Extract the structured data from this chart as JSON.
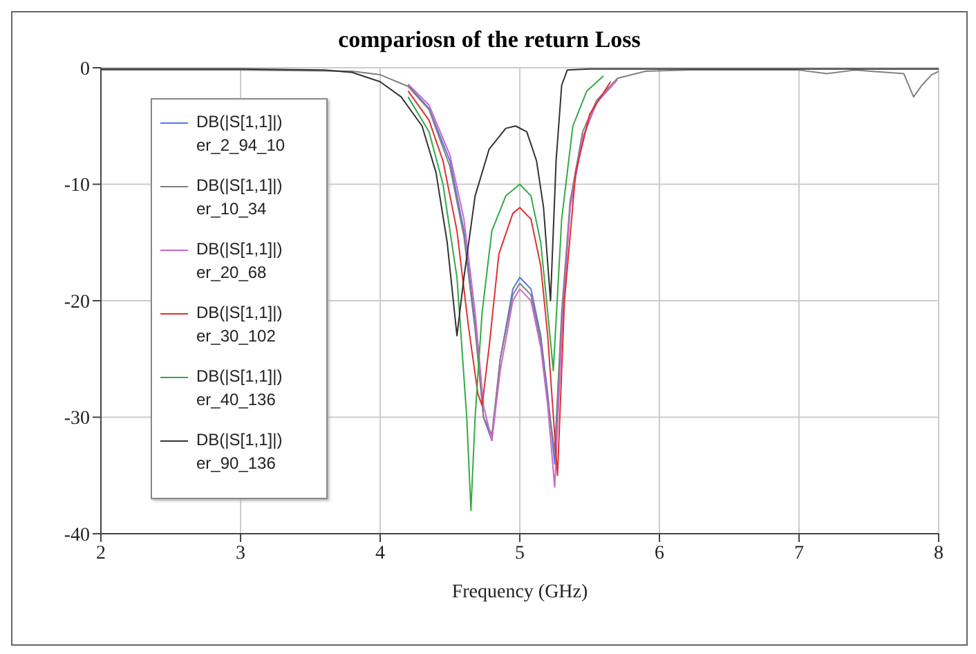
{
  "chart_data": {
    "type": "line",
    "title": "compariosn of the return Loss",
    "xlabel": "Frequency (GHz)",
    "xlim": [
      2,
      8
    ],
    "xticks": [
      2,
      3,
      4,
      5,
      6,
      7,
      8
    ],
    "ylim": [
      -40,
      0
    ],
    "yticks": [
      -40,
      -30,
      -20,
      -10,
      0
    ],
    "grid": true,
    "legend": "top left",
    "marker": "none",
    "line_style": "solid",
    "series": [
      {
        "name": "DB(|S[1,1]|) er_2_94_10",
        "color": "#5577dd",
        "x": [
          4.2,
          4.35,
          4.5,
          4.6,
          4.68,
          4.74,
          4.8,
          4.86,
          4.95,
          5.0,
          5.08,
          5.15,
          5.2,
          5.25,
          5.3,
          5.36,
          5.45,
          5.55,
          5.7
        ],
        "values": [
          -1.5,
          -3.5,
          -8,
          -14,
          -22,
          -30,
          -32,
          -25,
          -19,
          -18,
          -19,
          -23,
          -28,
          -34,
          -22,
          -12,
          -6,
          -3,
          -1
        ]
      },
      {
        "name": "DB(|S[1,1]|) er_10_34",
        "color": "#808080",
        "x": [
          2,
          3,
          3.8,
          4.0,
          4.2,
          4.35,
          4.5,
          4.6,
          4.68,
          4.74,
          4.8,
          4.86,
          4.95,
          5.0,
          5.08,
          5.15,
          5.2,
          5.25,
          5.3,
          5.36,
          5.45,
          5.55,
          5.7,
          5.9,
          6.2,
          7,
          7.2,
          7.4,
          7.75,
          7.82,
          7.88,
          7.95,
          8
        ],
        "values": [
          -0.2,
          -0.2,
          -0.3,
          -0.6,
          -1.6,
          -3.6,
          -8.5,
          -14.5,
          -22.5,
          -30,
          -31.5,
          -25,
          -19.5,
          -18.5,
          -19.5,
          -23.5,
          -28.5,
          -33,
          -21,
          -11.5,
          -5.5,
          -2.8,
          -0.9,
          -0.3,
          -0.2,
          -0.2,
          -0.5,
          -0.2,
          -0.5,
          -2.5,
          -1.5,
          -0.6,
          -0.3
        ]
      },
      {
        "name": "DB(|S[1,1]|) er_20_68",
        "color": "#cc66cc",
        "x": [
          4.2,
          4.35,
          4.5,
          4.6,
          4.68,
          4.74,
          4.8,
          4.86,
          4.95,
          5.0,
          5.08,
          5.15,
          5.2,
          5.25,
          5.3,
          5.36,
          5.45,
          5.55,
          5.7
        ],
        "values": [
          -1.4,
          -3.2,
          -7.5,
          -13,
          -21,
          -29,
          -32,
          -26,
          -20,
          -19,
          -20,
          -24,
          -29,
          -36,
          -23,
          -12,
          -6,
          -3,
          -1
        ]
      },
      {
        "name": "DB(|S[1,1]|) er_30_102",
        "color": "#e03030",
        "x": [
          4.2,
          4.35,
          4.45,
          4.55,
          4.63,
          4.7,
          4.73,
          4.78,
          4.85,
          4.95,
          5.0,
          5.08,
          5.15,
          5.2,
          5.27,
          5.32,
          5.4,
          5.5,
          5.65
        ],
        "values": [
          -2,
          -4.5,
          -8,
          -14,
          -22,
          -28,
          -29,
          -24,
          -16,
          -12.5,
          -12,
          -13,
          -17,
          -23,
          -35,
          -20,
          -9,
          -4,
          -1.2
        ]
      },
      {
        "name": "DB(|S[1,1]|) er_40_136",
        "color": "#33aa44",
        "x": [
          4.2,
          4.35,
          4.45,
          4.55,
          4.62,
          4.65,
          4.68,
          4.73,
          4.8,
          4.9,
          5.0,
          5.08,
          5.15,
          5.2,
          5.24,
          5.3,
          5.38,
          5.48,
          5.6
        ],
        "values": [
          -2.5,
          -5.5,
          -10,
          -18,
          -30,
          -38,
          -30,
          -21,
          -14,
          -11,
          -10,
          -11,
          -15,
          -21,
          -26,
          -13,
          -5,
          -2,
          -0.7
        ]
      },
      {
        "name": "DB(|S[1,1]|) er_90_136",
        "color": "#333333",
        "x": [
          2,
          3,
          3.6,
          3.8,
          4.0,
          4.15,
          4.3,
          4.4,
          4.48,
          4.55,
          4.6,
          4.68,
          4.78,
          4.9,
          4.97,
          5.05,
          5.12,
          5.17,
          5.22,
          5.26,
          5.3,
          5.34,
          5.5,
          6,
          7,
          8
        ],
        "values": [
          -0.1,
          -0.1,
          -0.2,
          -0.4,
          -1.2,
          -2.5,
          -5,
          -9,
          -15,
          -23,
          -18,
          -11,
          -7,
          -5.2,
          -5,
          -5.5,
          -8,
          -12,
          -20,
          -8,
          -1.5,
          -0.2,
          -0.1,
          -0.1,
          -0.1,
          -0.1
        ]
      }
    ]
  }
}
